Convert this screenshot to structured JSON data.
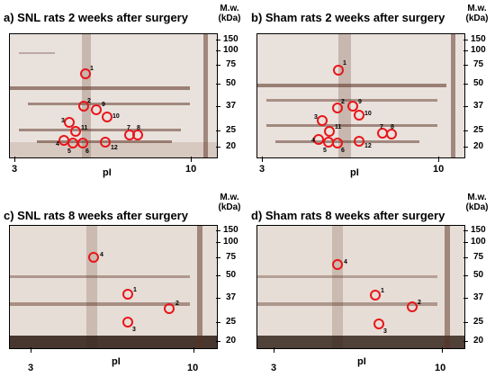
{
  "mw_unit_line1": "M.w.",
  "mw_unit_line2": "(kDa)",
  "x_axis_label": "pI",
  "x_axis_ticks": [
    "3",
    "10"
  ],
  "mw_markers": [
    "150",
    "100",
    "75",
    "50",
    "37",
    "25",
    "20"
  ],
  "colors": {
    "circle": "#e8161b",
    "gel_bg": "#e9e1dc",
    "band": "#5a2f20"
  },
  "panels": [
    {
      "title": "a) SNL rats 2 weeks after surgery",
      "spots": [
        "1",
        "2",
        "9",
        "10",
        "3",
        "11",
        "7",
        "8",
        "4",
        "5",
        "6",
        "12"
      ]
    },
    {
      "title": "b) Sham rats 2 weeks after surgery",
      "spots": [
        "1",
        "2",
        "9",
        "10",
        "3",
        "11",
        "7",
        "8",
        "4",
        "5",
        "6",
        "12"
      ]
    },
    {
      "title": "c) SNL rats 8 weeks after surgery",
      "spots": [
        "4",
        "1",
        "2",
        "3"
      ]
    },
    {
      "title": "d) Sham rats 8 weeks after surgery",
      "spots": [
        "4",
        "1",
        "2",
        "3"
      ]
    }
  ]
}
